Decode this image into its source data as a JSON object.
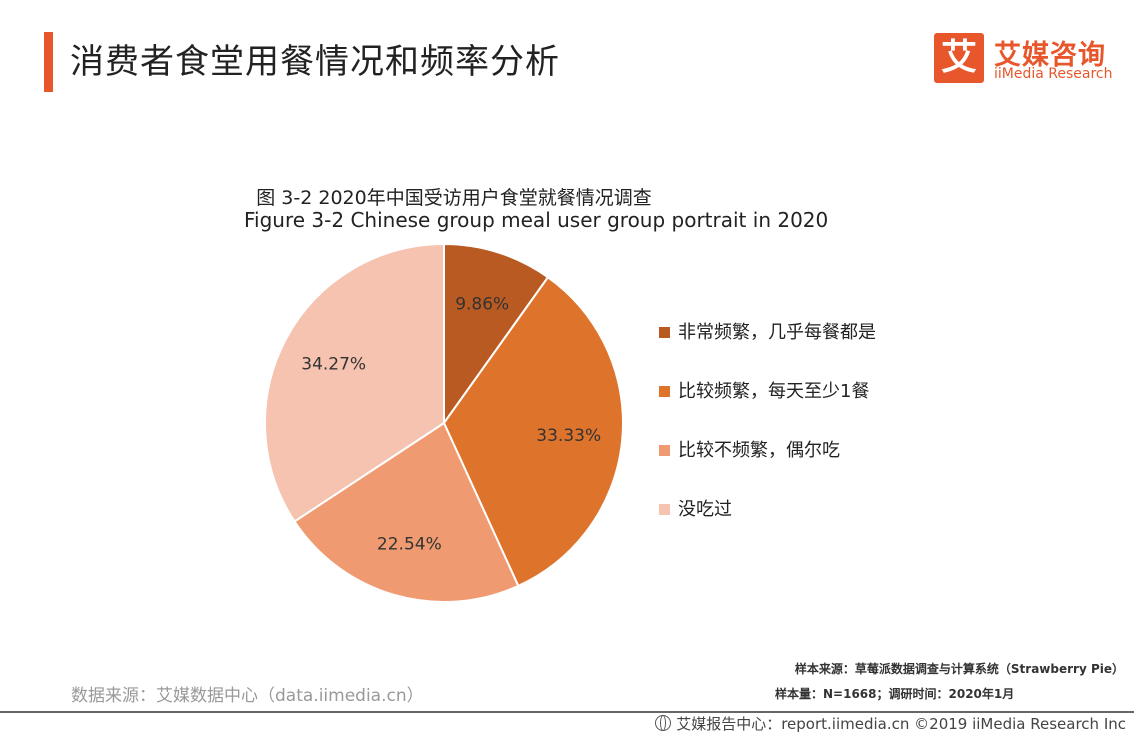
{
  "header": {
    "title": "消费者食堂用餐情况和频率分析"
  },
  "brand": {
    "logo_glyph": "艾",
    "name_cn": "艾媒咨询",
    "name_en": "iiMedia Research",
    "accent_color": "#e8572c"
  },
  "chart_data": {
    "type": "pie",
    "title_cn": "图 3-2 2020年中国受访用户食堂就餐情况调查",
    "title_en": "Figure 3-2 Chinese group meal user group portrait in 2020",
    "categories": [
      "非常频繁，几乎每餐都是",
      "比较频繁，每天至少1餐",
      "比较不频繁，偶尔吃",
      "没吃过"
    ],
    "values": [
      9.86,
      33.33,
      22.54,
      34.27
    ],
    "data_labels": [
      "9.86%",
      "33.33%",
      "22.54%",
      "34.27%"
    ],
    "colors": [
      "#b95a22",
      "#de732c",
      "#ef9a70",
      "#f5c3b0"
    ],
    "legend_position": "right"
  },
  "footer": {
    "source_left": "数据来源：艾媒数据中心（data.iimedia.cn）",
    "sample_source": "样本来源：草莓派数据调查与计算系统（Strawberry Pie）",
    "sample_size": "样本量：N=1668；调研时间：2020年1月",
    "credit": "艾媒报告中心：report.iimedia.cn ©2019 iiMedia Research Inc"
  }
}
